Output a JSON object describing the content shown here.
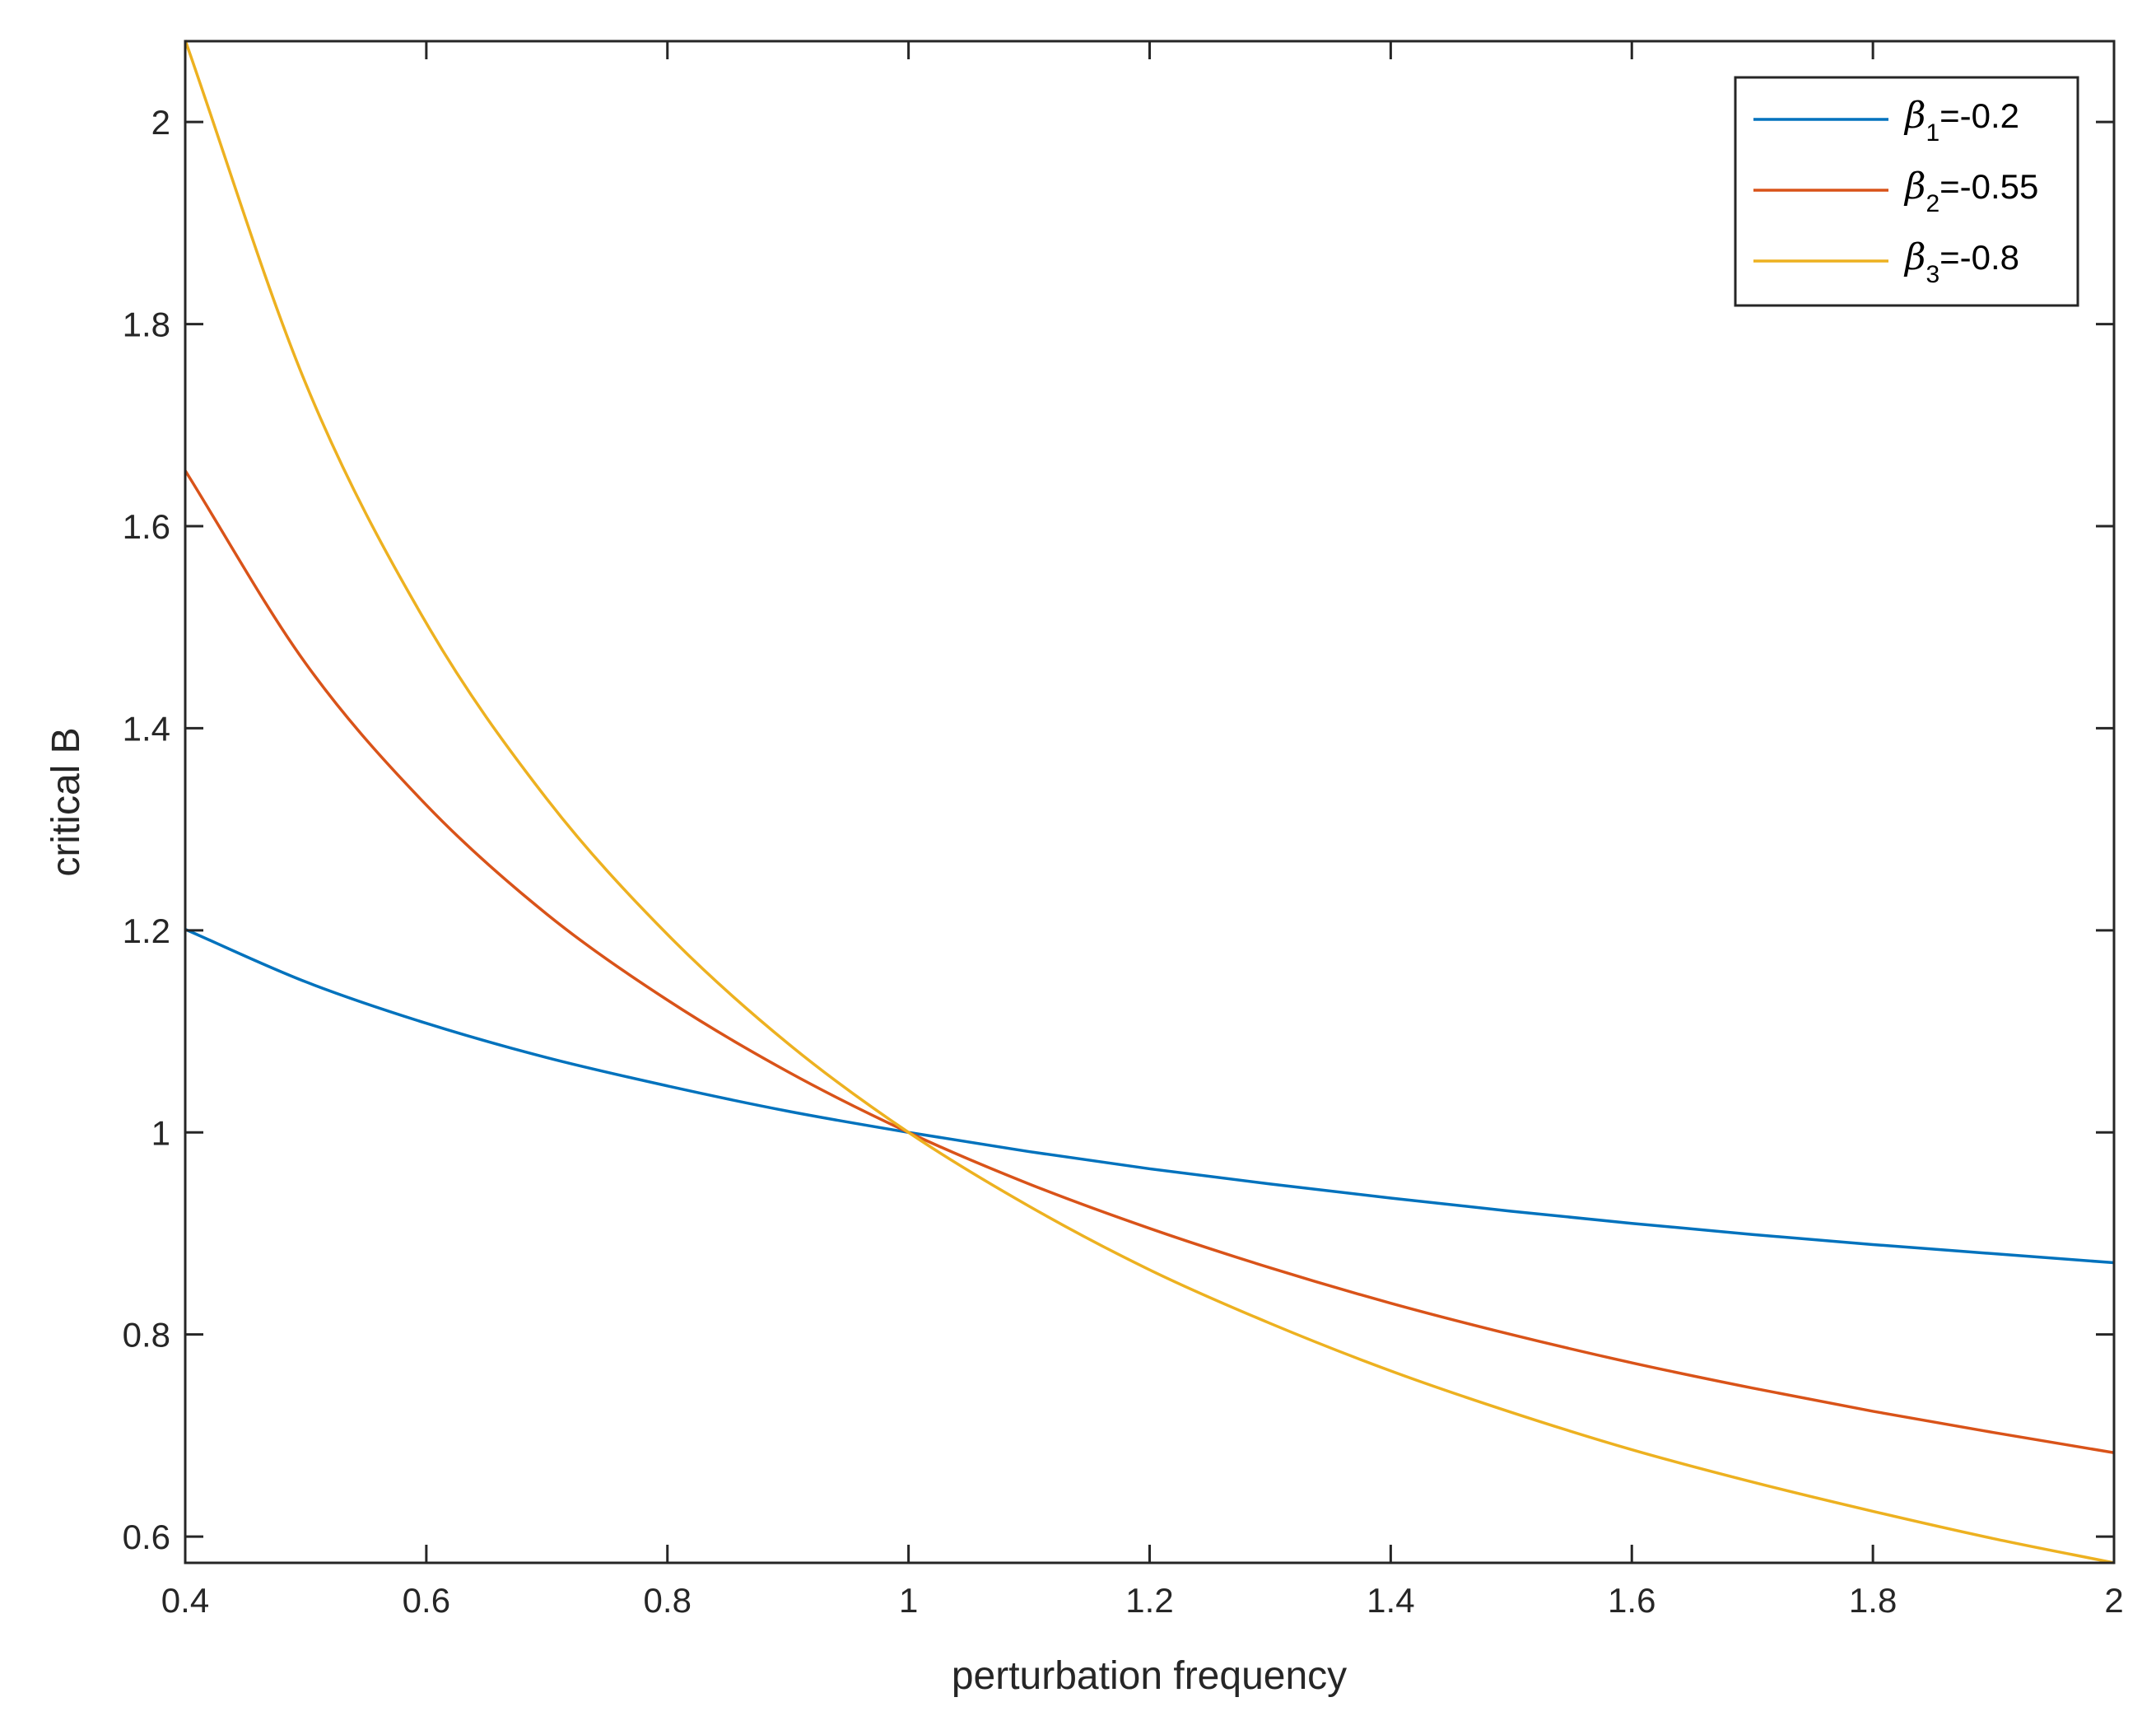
{
  "chart_data": {
    "type": "line",
    "xlabel": "perturbation frequency",
    "ylabel": "critical B",
    "xlim": [
      0.4,
      2.0
    ],
    "ylim": [
      0.574,
      2.08
    ],
    "xticks": [
      0.4,
      0.6,
      0.8,
      1.0,
      1.2,
      1.4,
      1.6,
      1.8,
      2.0
    ],
    "xtick_labels": [
      "0.4",
      "0.6",
      "0.8",
      "1",
      "1.2",
      "1.4",
      "1.6",
      "1.8",
      "2"
    ],
    "yticks": [
      0.6,
      0.8,
      1.0,
      1.2,
      1.4,
      1.6,
      1.8,
      2.0
    ],
    "ytick_labels": [
      "0.6",
      "0.8",
      "1",
      "1.2",
      "1.4",
      "1.6",
      "1.8",
      "2"
    ],
    "grid": false,
    "legend_position": "top-right",
    "x": [
      0.4,
      0.5,
      0.6,
      0.7,
      0.8,
      0.9,
      1.0,
      1.1,
      1.2,
      1.3,
      1.4,
      1.5,
      1.6,
      1.7,
      1.8,
      1.9,
      2.0
    ],
    "series": [
      {
        "name": "β1=-0.2",
        "legend_symbol": "β",
        "legend_subscript": "1",
        "legend_value": "=-0.2",
        "color": "#0072BD",
        "values": [
          1.201,
          1.149,
          1.108,
          1.074,
          1.046,
          1.021,
          1.0,
          0.981,
          0.964,
          0.949,
          0.935,
          0.922,
          0.91,
          0.899,
          0.889,
          0.88,
          0.871
        ]
      },
      {
        "name": "β2=-0.55",
        "legend_symbol": "β",
        "legend_subscript": "2",
        "legend_value": "=-0.55",
        "color": "#D95319",
        "values": [
          1.655,
          1.464,
          1.324,
          1.216,
          1.131,
          1.06,
          1.0,
          0.949,
          0.905,
          0.866,
          0.831,
          0.8,
          0.772,
          0.747,
          0.724,
          0.703,
          0.683
        ]
      },
      {
        "name": "β3=-0.8",
        "legend_symbol": "β",
        "legend_subscript": "3",
        "legend_value": "=-0.8",
        "color": "#EDB120",
        "values": [
          2.081,
          1.741,
          1.504,
          1.33,
          1.196,
          1.088,
          1.0,
          0.927,
          0.864,
          0.811,
          0.764,
          0.723,
          0.686,
          0.654,
          0.625,
          0.598,
          0.574
        ]
      }
    ]
  }
}
